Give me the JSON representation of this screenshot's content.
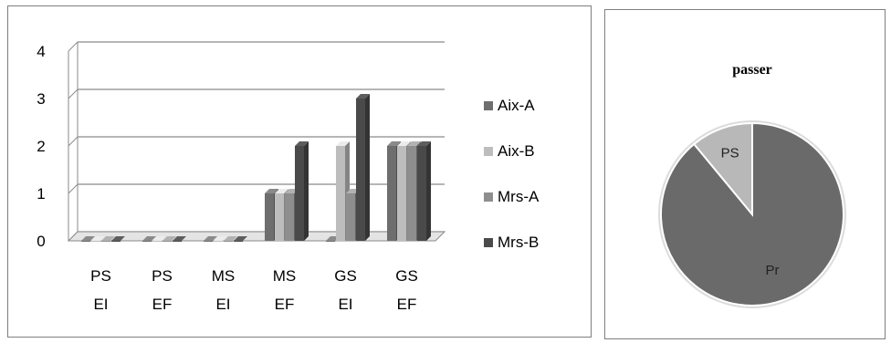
{
  "chart_data": [
    {
      "type": "bar",
      "categories": [
        [
          "PS",
          "EI"
        ],
        [
          "PS",
          "EF"
        ],
        [
          "MS",
          "EI"
        ],
        [
          "MS",
          "EF"
        ],
        [
          "GS",
          "EI"
        ],
        [
          "GS",
          "EF"
        ]
      ],
      "series": [
        {
          "name": "Aix-A",
          "color": "#6e6e6e",
          "values": [
            0,
            0,
            0,
            1,
            0,
            2
          ]
        },
        {
          "name": "Aix-B",
          "color": "#bdbdbd",
          "values": [
            0,
            0,
            0,
            1,
            2,
            2
          ]
        },
        {
          "name": "Mrs-A",
          "color": "#8e8e8e",
          "values": [
            0,
            0,
            0,
            1,
            1,
            2
          ]
        },
        {
          "name": "Mrs-B",
          "color": "#4a4a4a",
          "values": [
            0,
            0,
            0,
            2,
            3,
            2
          ]
        }
      ],
      "yticks": [
        "0",
        "1",
        "2",
        "3",
        "4"
      ],
      "ylim": [
        0,
        4
      ],
      "grid": true,
      "legend_position": "right",
      "title": "",
      "xlabel": "",
      "ylabel": ""
    },
    {
      "type": "pie",
      "title": "passer",
      "slices": [
        {
          "label": "Pr",
          "value": 89,
          "color": "#6a6a6a"
        },
        {
          "label": "PS",
          "value": 11,
          "color": "#b8b8b8"
        }
      ]
    }
  ]
}
